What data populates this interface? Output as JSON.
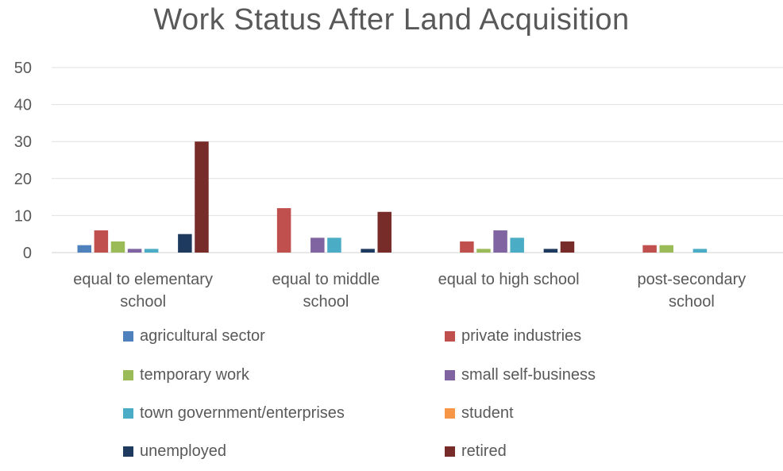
{
  "chart_data": {
    "type": "bar",
    "title": "Work Status After Land Acquisition",
    "categories": [
      [
        "equal to elementary",
        "school"
      ],
      [
        "equal to middle",
        "school"
      ],
      [
        "equal to high school"
      ],
      [
        "post-secondary",
        "school"
      ]
    ],
    "yticks": [
      "0",
      "10",
      "20",
      "30",
      "40",
      "50"
    ],
    "ylim": [
      0,
      50
    ],
    "grid": true,
    "legend_position": "bottom",
    "series": [
      {
        "name": "agricultural sector",
        "color": "#4F81BD",
        "values": [
          2,
          0,
          0,
          0
        ]
      },
      {
        "name": "private industries",
        "color": "#C0504D",
        "values": [
          6,
          12,
          3,
          2
        ]
      },
      {
        "name": "temporary work",
        "color": "#9BBB59",
        "values": [
          3,
          0,
          1,
          2
        ]
      },
      {
        "name": "small self-business",
        "color": "#8064A2",
        "values": [
          1,
          4,
          6,
          0
        ]
      },
      {
        "name": "town government/enterprises",
        "color": "#4BACC6",
        "values": [
          1,
          4,
          4,
          1
        ]
      },
      {
        "name": "student",
        "color": "#F79646",
        "values": [
          0,
          0,
          0,
          0
        ]
      },
      {
        "name": "unemployed",
        "color": "#1F3A5F",
        "values": [
          5,
          1,
          1,
          0
        ]
      },
      {
        "name": "retired",
        "color": "#772C2A",
        "values": [
          30,
          11,
          3,
          0
        ]
      }
    ]
  }
}
